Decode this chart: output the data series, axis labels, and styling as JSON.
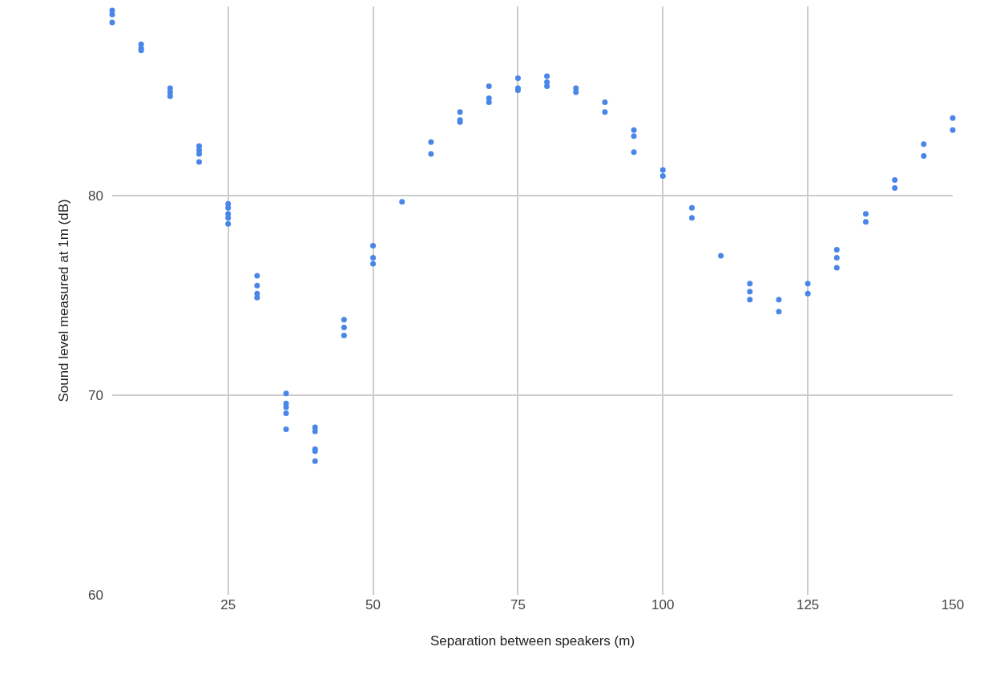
{
  "chart_data": {
    "type": "scatter",
    "xlabel": "Separation between speakers (m)",
    "ylabel": "Sound level measured at 1m (dB)",
    "x": [
      5,
      5,
      5,
      10,
      10,
      10,
      15,
      15,
      15,
      20,
      20,
      20,
      20,
      25,
      25,
      25,
      25,
      25,
      30,
      30,
      30,
      30,
      35,
      35,
      35,
      35,
      35,
      40,
      40,
      40,
      40,
      40,
      45,
      45,
      45,
      50,
      50,
      50,
      55,
      60,
      60,
      65,
      65,
      65,
      70,
      70,
      70,
      75,
      75,
      75,
      80,
      80,
      80,
      85,
      85,
      90,
      90,
      95,
      95,
      95,
      100,
      100,
      105,
      105,
      110,
      115,
      115,
      115,
      120,
      120,
      125,
      125,
      130,
      130,
      130,
      135,
      135,
      140,
      140,
      145,
      145,
      150,
      150
    ],
    "series": [
      {
        "color": "#4a86e8",
        "values": [
          89.3,
          89.1,
          88.7,
          87.6,
          87.4,
          87.3,
          85.4,
          85.2,
          85.0,
          82.5,
          82.3,
          82.1,
          81.7,
          79.6,
          79.4,
          79.1,
          78.9,
          78.6,
          76.0,
          75.5,
          75.1,
          74.9,
          70.1,
          69.6,
          69.4,
          69.1,
          68.3,
          68.4,
          68.2,
          67.3,
          67.2,
          66.7,
          73.8,
          73.4,
          73.0,
          77.5,
          76.9,
          76.6,
          79.7,
          82.7,
          82.1,
          84.2,
          83.8,
          83.7,
          85.5,
          84.9,
          84.7,
          85.9,
          85.4,
          85.3,
          86.0,
          85.7,
          85.5,
          85.4,
          85.2,
          84.7,
          84.2,
          83.3,
          83.0,
          82.2,
          81.3,
          81.0,
          79.4,
          78.9,
          77.0,
          75.6,
          75.2,
          74.8,
          74.8,
          74.2,
          75.6,
          75.1,
          77.3,
          76.9,
          76.4,
          79.1,
          78.7,
          80.8,
          80.4,
          82.6,
          82.0,
          83.9,
          83.3
        ]
      }
    ],
    "xlim": [
      5,
      150
    ],
    "xticks": [
      25,
      50,
      75,
      100,
      125,
      150
    ],
    "ylim": [
      60,
      89.5
    ],
    "yticks": [
      60,
      70,
      80
    ],
    "grid": true,
    "marker": "circle"
  }
}
